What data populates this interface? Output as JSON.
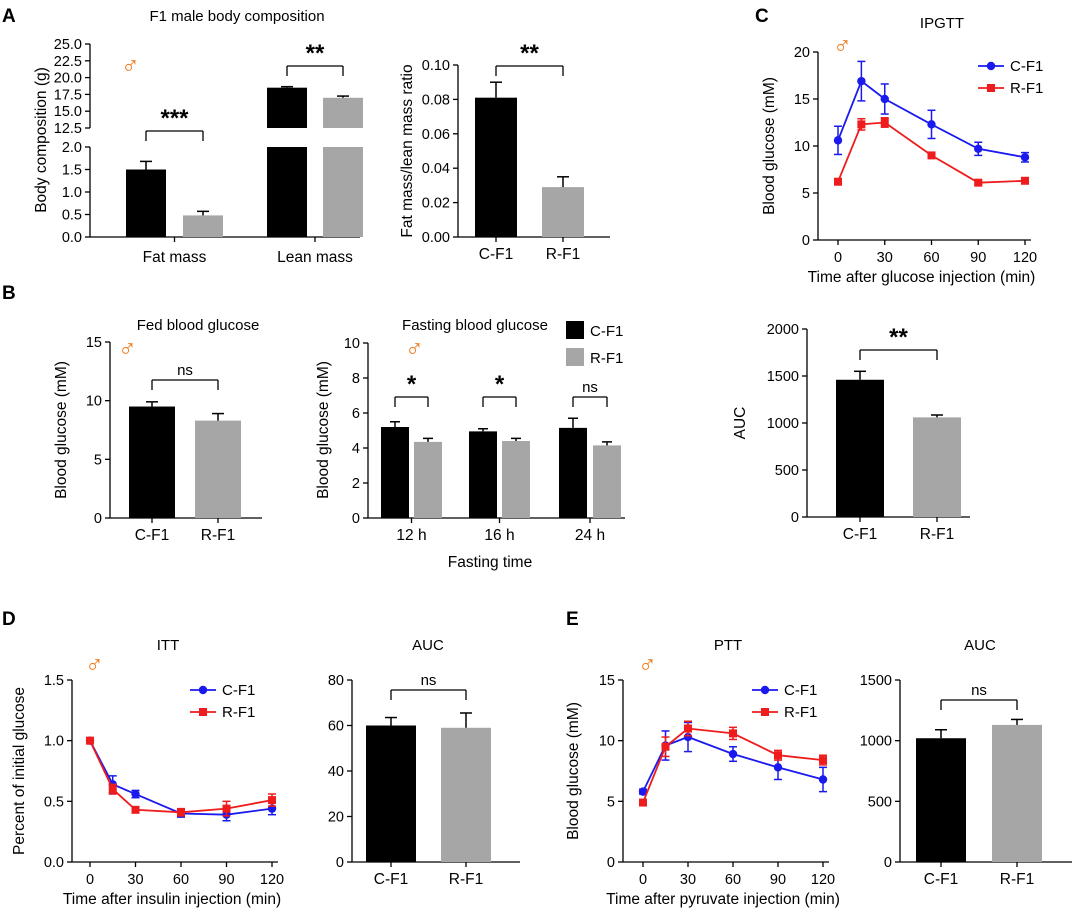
{
  "panel_labels": [
    "A",
    "B",
    "C",
    "D",
    "E"
  ],
  "male_symbol": "♂",
  "colors": {
    "black_bar": "#000000",
    "gray_bar": "#a6a6a6",
    "c_line": "#1a1aee",
    "r_line": "#ee1c1c",
    "male": "#f07a1a"
  },
  "chart_data": [
    {
      "id": "A1",
      "type": "bar",
      "title": "F1 male body composition",
      "ylabel": "Body composition (g)",
      "xlabel": "",
      "categories": [
        "Fat mass",
        "Lean mass"
      ],
      "series": [
        {
          "name": "C-F1",
          "values": [
            1.5,
            18.5
          ],
          "err": [
            0.18,
            0.15
          ]
        },
        {
          "name": "R-F1",
          "values": [
            0.48,
            17.0
          ],
          "err": [
            0.09,
            0.25
          ]
        }
      ],
      "ylim_lower": [
        0,
        2.0
      ],
      "ylim_upper": [
        12.5,
        25.0
      ],
      "yticks_lower": [
        "0.0",
        "0.5",
        "1.0",
        "1.5",
        "2.0"
      ],
      "yticks_upper": [
        "12.5",
        "15.0",
        "17.5",
        "20.0",
        "22.5",
        "25.0"
      ],
      "sig": [
        "***",
        "**"
      ]
    },
    {
      "id": "A2",
      "type": "bar",
      "title": "",
      "ylabel": "Fat mass/lean mass ratio",
      "xlabel": "",
      "categories": [
        "C-F1",
        "R-F1"
      ],
      "values": [
        0.081,
        0.029
      ],
      "err": [
        0.009,
        0.006
      ],
      "ylim": [
        0,
        0.1
      ],
      "yticks": [
        "0.00",
        "0.02",
        "0.04",
        "0.06",
        "0.08",
        "0.10"
      ],
      "sig": "**"
    },
    {
      "id": "C1",
      "type": "line",
      "title": "IPGTT",
      "ylabel": "Blood glucose (mM)",
      "xlabel": "Time after glucose injection (min)",
      "x": [
        0,
        15,
        30,
        60,
        90,
        120
      ],
      "series": [
        {
          "name": "C-F1",
          "values": [
            10.6,
            16.9,
            15.0,
            12.3,
            9.7,
            8.8
          ],
          "err": [
            1.5,
            2.1,
            1.6,
            1.5,
            0.7,
            0.5
          ]
        },
        {
          "name": "R-F1",
          "values": [
            6.2,
            12.3,
            12.5,
            9.0,
            6.1,
            6.3
          ],
          "err": [
            0.2,
            0.6,
            0.5,
            0.2,
            0.2,
            0.2
          ]
        }
      ],
      "ylim": [
        0,
        20
      ],
      "yticks": [
        "0",
        "5",
        "10",
        "15",
        "20"
      ],
      "xticks": [
        "0",
        "30",
        "60",
        "90",
        "120"
      ]
    },
    {
      "id": "B1",
      "type": "bar",
      "title": "Fed blood glucose",
      "ylabel": "Blood glucose (mM)",
      "xlabel": "",
      "categories": [
        "C-F1",
        "R-F1"
      ],
      "values": [
        9.5,
        8.3
      ],
      "err": [
        0.4,
        0.6
      ],
      "ylim": [
        0,
        15
      ],
      "yticks": [
        "0",
        "5",
        "10",
        "15"
      ],
      "sig": "ns"
    },
    {
      "id": "B2",
      "type": "bar",
      "title": "Fasting blood glucose",
      "ylabel": "Blood glucose (mM)",
      "xlabel": "Fasting time",
      "categories": [
        "12 h",
        "16 h",
        "24 h"
      ],
      "series": [
        {
          "name": "C-F1",
          "values": [
            5.2,
            4.95,
            5.15
          ],
          "err": [
            0.3,
            0.15,
            0.55
          ]
        },
        {
          "name": "R-F1",
          "values": [
            4.35,
            4.4,
            4.15
          ],
          "err": [
            0.2,
            0.15,
            0.2
          ]
        }
      ],
      "ylim": [
        0,
        10
      ],
      "yticks": [
        "0",
        "2",
        "4",
        "6",
        "8",
        "10"
      ],
      "sig": [
        "*",
        "*",
        "ns"
      ]
    },
    {
      "id": "C2",
      "type": "bar",
      "title": "",
      "ylabel": "AUC",
      "xlabel": "",
      "categories": [
        "C-F1",
        "R-F1"
      ],
      "values": [
        1460,
        1060
      ],
      "err": [
        90,
        25
      ],
      "ylim": [
        0,
        2000
      ],
      "yticks": [
        "0",
        "500",
        "1000",
        "1500",
        "2000"
      ],
      "sig": "**"
    },
    {
      "id": "D1",
      "type": "line",
      "title": "ITT",
      "ylabel": "Percent of initial glucose",
      "xlabel": "Time after insulin injection (min)",
      "x": [
        0,
        15,
        30,
        60,
        90,
        120
      ],
      "series": [
        {
          "name": "C-F1",
          "values": [
            1.0,
            0.64,
            0.56,
            0.4,
            0.39,
            0.44
          ],
          "err": [
            0.02,
            0.07,
            0.03,
            0.03,
            0.05,
            0.05
          ]
        },
        {
          "name": "R-F1",
          "values": [
            1.0,
            0.6,
            0.43,
            0.41,
            0.44,
            0.51
          ],
          "err": [
            0.02,
            0.04,
            0.02,
            0.03,
            0.06,
            0.05
          ]
        }
      ],
      "ylim": [
        0,
        1.5
      ],
      "yticks": [
        "0.0",
        "0.5",
        "1.0",
        "1.5"
      ],
      "xticks": [
        "0",
        "30",
        "60",
        "90",
        "120"
      ]
    },
    {
      "id": "D2",
      "type": "bar",
      "title": "AUC",
      "ylabel": "",
      "xlabel": "",
      "categories": [
        "C-F1",
        "R-F1"
      ],
      "values": [
        60,
        59
      ],
      "err": [
        3.5,
        6.5
      ],
      "ylim": [
        0,
        80
      ],
      "yticks": [
        "0",
        "20",
        "40",
        "60",
        "80"
      ],
      "sig": "ns"
    },
    {
      "id": "E1",
      "type": "line",
      "title": "PTT",
      "ylabel": "Blood glucose (mM)",
      "xlabel": "Time after pyruvate injection (min)",
      "x": [
        0,
        15,
        30,
        60,
        90,
        120
      ],
      "series": [
        {
          "name": "C-F1",
          "values": [
            5.8,
            9.6,
            10.3,
            8.9,
            7.8,
            6.8
          ],
          "err": [
            0.2,
            1.2,
            1.2,
            0.6,
            1.0,
            1.0
          ]
        },
        {
          "name": "R-F1",
          "values": [
            4.9,
            9.5,
            11.0,
            10.6,
            8.8,
            8.4
          ],
          "err": [
            0.2,
            0.8,
            0.6,
            0.5,
            0.4,
            0.4
          ]
        }
      ],
      "ylim": [
        0,
        15
      ],
      "yticks": [
        "0",
        "5",
        "10",
        "15"
      ],
      "xticks": [
        "0",
        "30",
        "60",
        "90",
        "120"
      ]
    },
    {
      "id": "E2",
      "type": "bar",
      "title": "AUC",
      "ylabel": "",
      "xlabel": "",
      "categories": [
        "C-F1",
        "R-F1"
      ],
      "values": [
        1020,
        1130
      ],
      "err": [
        70,
        45
      ],
      "ylim": [
        0,
        1500
      ],
      "yticks": [
        "0",
        "500",
        "1000",
        "1500"
      ],
      "sig": "ns"
    }
  ]
}
